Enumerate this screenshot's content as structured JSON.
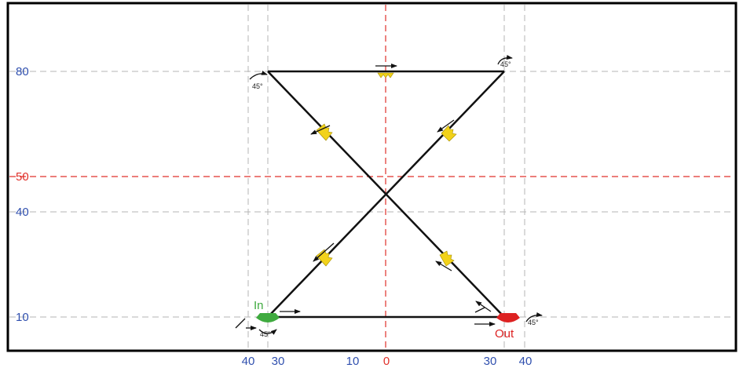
{
  "y_axis_labels": [
    "80",
    "50",
    "40",
    "10"
  ],
  "x_axis_labels": [
    "40",
    "30",
    "10",
    "0",
    "30",
    "40"
  ],
  "start_label": "In",
  "end_label": "Out",
  "angle_labels": [
    "45°",
    "45°",
    "45°",
    "45°"
  ]
}
